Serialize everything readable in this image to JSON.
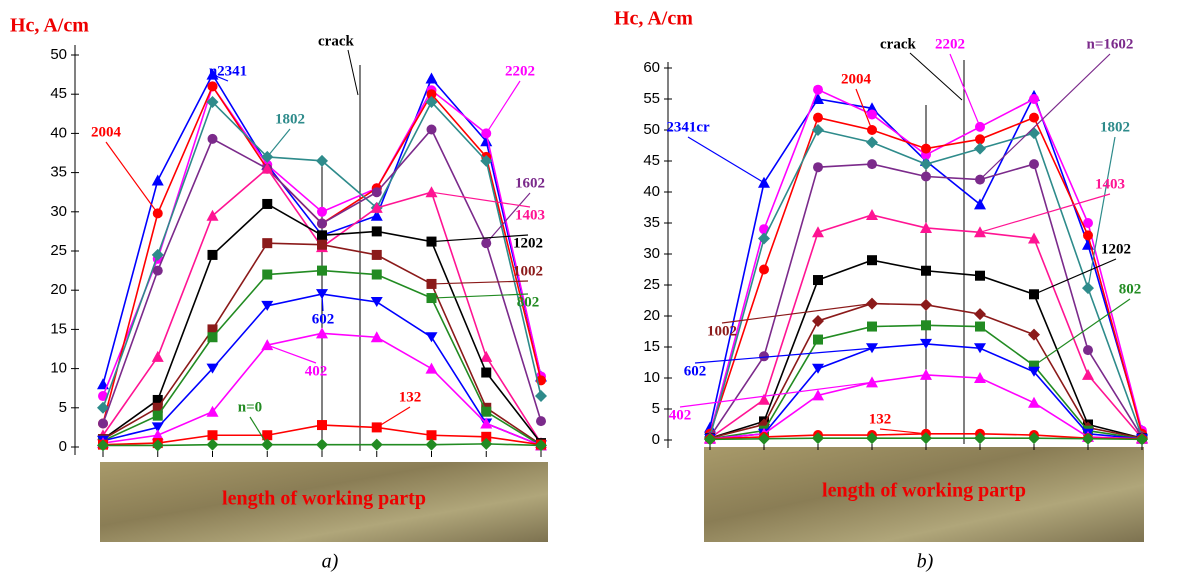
{
  "chart_data": [
    {
      "type": "line",
      "ylabel": "Hc, A/cm",
      "annotation": "crack",
      "xlabel": "length of working partp",
      "panel_label": "a)",
      "categories": [
        null,
        null,
        null,
        null,
        null,
        null,
        null,
        null,
        null
      ],
      "ylim": [
        0,
        50
      ],
      "yticks": [
        0,
        5,
        10,
        15,
        20,
        25,
        30,
        35,
        40,
        45,
        50
      ],
      "series": [
        {
          "name": "n2341",
          "color": "#0000ff",
          "marker": "triangle",
          "values": [
            8,
            34,
            47.5,
            36,
            27,
            29.5,
            47,
            39,
            9
          ]
        },
        {
          "name": "2202",
          "color": "#ff00ff",
          "marker": "circle",
          "values": [
            6.5,
            24,
            46,
            36,
            30,
            33,
            45.5,
            40,
            9
          ]
        },
        {
          "name": "2004",
          "color": "#ff0000",
          "marker": "circle",
          "values": [
            3,
            29.8,
            46,
            35.5,
            28.5,
            33,
            45,
            37,
            8.5
          ]
        },
        {
          "name": "1802",
          "color": "#2e8b8b",
          "marker": "diamond",
          "values": [
            5,
            24.5,
            44,
            37,
            36.5,
            30.5,
            44,
            36.5,
            6.5
          ]
        },
        {
          "name": "1602",
          "color": "#7b2a8b",
          "marker": "circle",
          "values": [
            3,
            22.5,
            39.3,
            35.5,
            28.5,
            32.5,
            40.5,
            26,
            3.3
          ]
        },
        {
          "name": "1403",
          "color": "#ff1493",
          "marker": "triangle",
          "values": [
            1.5,
            11.5,
            29.5,
            35.5,
            25.5,
            30.5,
            32.5,
            11.5,
            0.5
          ]
        },
        {
          "name": "1202",
          "color": "#000000",
          "marker": "square",
          "values": [
            1,
            6,
            24.5,
            31,
            27,
            27.5,
            26.2,
            9.5,
            0.5
          ]
        },
        {
          "name": "1002",
          "color": "#8b1a1a",
          "marker": "square",
          "values": [
            1,
            5,
            15,
            26,
            25.8,
            24.5,
            20.8,
            5,
            0.3
          ]
        },
        {
          "name": "802",
          "color": "#228b22",
          "marker": "square",
          "values": [
            0.8,
            4,
            14,
            22,
            22.5,
            22,
            19,
            4.5,
            0.2
          ]
        },
        {
          "name": "602",
          "color": "#0000ff",
          "marker": "triangle-down",
          "values": [
            0.8,
            2.5,
            10,
            18,
            19.5,
            18.5,
            14,
            3,
            0.2
          ]
        },
        {
          "name": "402",
          "color": "#ff00ff",
          "marker": "triangle",
          "values": [
            0.5,
            1.5,
            4.5,
            13,
            14.5,
            14,
            10,
            3,
            0.2
          ]
        },
        {
          "name": "132",
          "color": "#ff0000",
          "marker": "square",
          "values": [
            0.3,
            0.5,
            1.5,
            1.5,
            2.8,
            2.5,
            1.5,
            1.3,
            0.3
          ]
        },
        {
          "name": "n=0",
          "color": "#228b22",
          "marker": "diamond",
          "values": [
            0.2,
            0.2,
            0.3,
            0.3,
            0.3,
            0.3,
            0.3,
            0.4,
            0.2
          ]
        }
      ]
    },
    {
      "type": "line",
      "ylabel": "Hc, A/cm",
      "annotation": "crack",
      "xlabel": "length of working partp",
      "panel_label": "b)",
      "categories": [
        null,
        null,
        null,
        null,
        null,
        null,
        null,
        null,
        null
      ],
      "ylim": [
        0,
        60
      ],
      "yticks": [
        0,
        5,
        10,
        15,
        20,
        25,
        30,
        35,
        40,
        45,
        50,
        55,
        60
      ],
      "series": [
        {
          "name": "2341cr",
          "color": "#0000ff",
          "marker": "triangle",
          "values": [
            2,
            41.5,
            55,
            53.5,
            45,
            38,
            55.5,
            31.5,
            1.5
          ]
        },
        {
          "name": "2202",
          "color": "#ff00ff",
          "marker": "circle",
          "values": [
            1,
            34,
            56.5,
            52.5,
            46,
            50.5,
            55,
            35,
            1.5
          ]
        },
        {
          "name": "2004",
          "color": "#ff0000",
          "marker": "circle",
          "values": [
            1,
            27.5,
            52,
            50,
            47,
            48.5,
            52,
            33,
            1
          ]
        },
        {
          "name": "1802",
          "color": "#2e8b8b",
          "marker": "diamond",
          "values": [
            0.5,
            32.5,
            50,
            48,
            44.5,
            47,
            49.5,
            24.5,
            0.5
          ]
        },
        {
          "name": "n=1602",
          "color": "#7b2a8b",
          "marker": "circle",
          "values": [
            0.5,
            13.5,
            44,
            44.5,
            42.5,
            42,
            44.5,
            14.5,
            0.5
          ]
        },
        {
          "name": "1403",
          "color": "#ff1493",
          "marker": "triangle",
          "values": [
            0.3,
            6.5,
            33.5,
            36.3,
            34.2,
            33.5,
            32.5,
            10.5,
            0.3
          ]
        },
        {
          "name": "1202",
          "color": "#000000",
          "marker": "square",
          "values": [
            0.3,
            3,
            25.8,
            29,
            27.3,
            26.5,
            23.5,
            2.5,
            0.3
          ]
        },
        {
          "name": "1002",
          "color": "#8b1a1a",
          "marker": "diamond",
          "values": [
            0.3,
            2.5,
            19.2,
            22,
            21.8,
            20.3,
            17,
            2,
            0.3
          ]
        },
        {
          "name": "802",
          "color": "#228b22",
          "marker": "square",
          "values": [
            0.2,
            1.5,
            16.2,
            18.3,
            18.5,
            18.3,
            12,
            1.5,
            0.2
          ]
        },
        {
          "name": "602",
          "color": "#0000ff",
          "marker": "triangle-down",
          "values": [
            0.2,
            1,
            11.5,
            14.8,
            15.5,
            14.8,
            11,
            1,
            0.2
          ]
        },
        {
          "name": "402",
          "color": "#ff00ff",
          "marker": "triangle",
          "values": [
            0.2,
            1,
            7.2,
            9.3,
            10.5,
            10,
            6,
            0.5,
            0.2
          ]
        },
        {
          "name": "132",
          "color": "#ff0000",
          "marker": "circle",
          "values": [
            0.2,
            0.5,
            0.8,
            0.8,
            1,
            1,
            0.8,
            0.3,
            0.2
          ]
        },
        {
          "color": "#228b22",
          "marker": "diamond",
          "values": [
            0.1,
            0.2,
            0.3,
            0.3,
            0.3,
            0.3,
            0.3,
            0.2,
            0.1
          ]
        }
      ]
    }
  ]
}
